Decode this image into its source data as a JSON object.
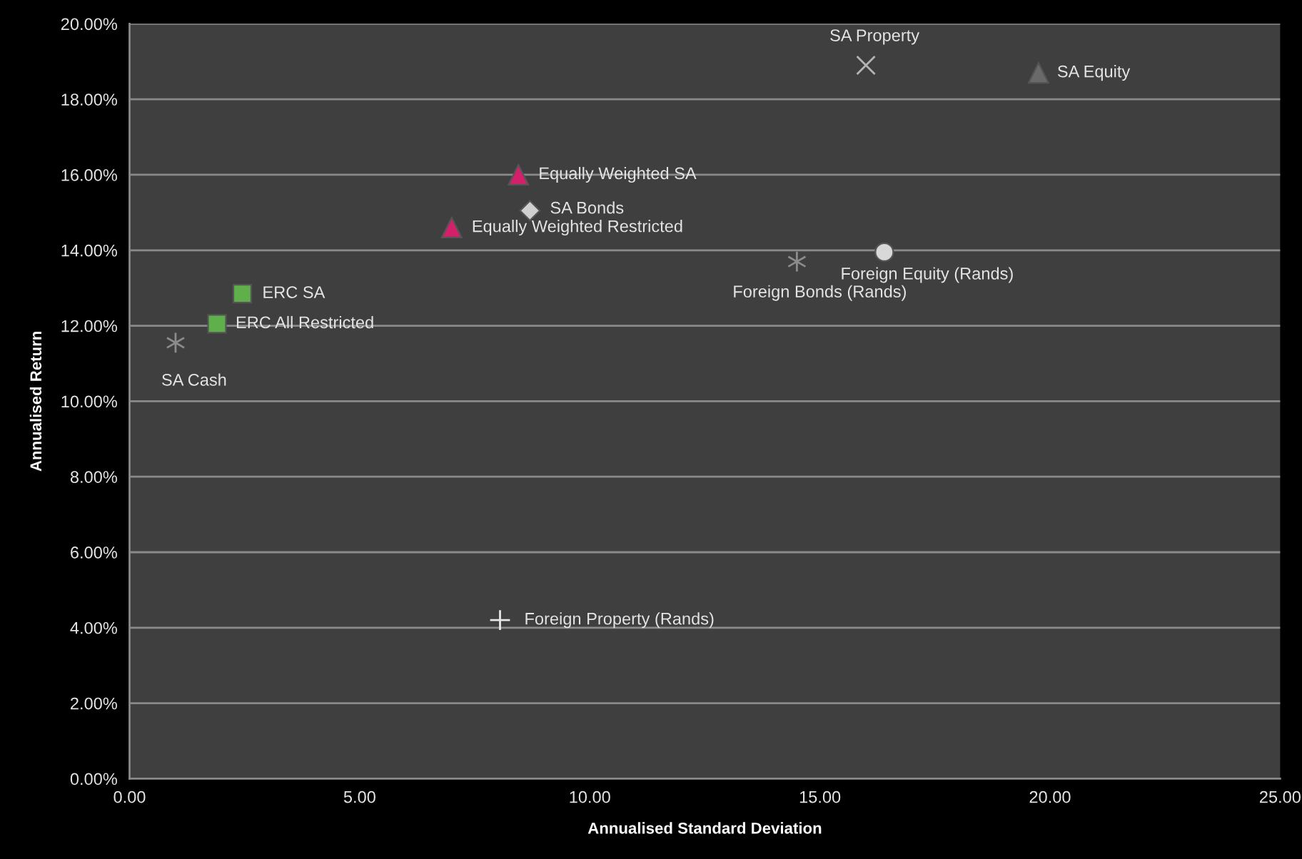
{
  "chart_data": {
    "type": "scatter",
    "xlabel": "Annualised Standard Deviation",
    "ylabel": "Annualised Return",
    "xlim": [
      0,
      25
    ],
    "ylim": [
      0,
      20
    ],
    "xticks": [
      {
        "value": 0,
        "label": "0.00"
      },
      {
        "value": 5,
        "label": "5.00"
      },
      {
        "value": 10,
        "label": "10.00"
      },
      {
        "value": 15,
        "label": "15.00"
      },
      {
        "value": 20,
        "label": "20.00"
      },
      {
        "value": 25,
        "label": "25.00"
      }
    ],
    "yticks": [
      {
        "value": 0,
        "label": "0.00%"
      },
      {
        "value": 2,
        "label": "2.00%"
      },
      {
        "value": 4,
        "label": "4.00%"
      },
      {
        "value": 6,
        "label": "6.00%"
      },
      {
        "value": 8,
        "label": "8.00%"
      },
      {
        "value": 10,
        "label": "10.00%"
      },
      {
        "value": 12,
        "label": "12.00%"
      },
      {
        "value": 14,
        "label": "14.00%"
      },
      {
        "value": 16,
        "label": "16.00%"
      },
      {
        "value": 18,
        "label": "18.00%"
      },
      {
        "value": 20,
        "label": "20.00%"
      }
    ],
    "grid": "y",
    "series": [
      {
        "name": "SA Cash",
        "color": "#8c8c8c",
        "x": [
          1.0
        ],
        "values": [
          11.55
        ]
      },
      {
        "name": "ERC All Restricted",
        "marker": "square",
        "color": "#5fb04a",
        "x": [
          1.9
        ],
        "values": [
          12.05
        ]
      },
      {
        "name": "ERC SA",
        "marker": "square",
        "color": "#5fb04a",
        "x": [
          2.45
        ],
        "values": [
          12.85
        ]
      },
      {
        "name": "Equally Weighted Restricted",
        "marker": "triangle",
        "color": "#d4206a",
        "x": [
          7.0
        ],
        "values": [
          14.6
        ]
      },
      {
        "name": "Equally Weighted SA",
        "marker": "triangle",
        "color": "#d4206a",
        "x": [
          8.45
        ],
        "values": [
          16.0
        ]
      },
      {
        "name": "SA Bonds",
        "marker": "diamond",
        "color": "#d0d0d0",
        "x": [
          8.7
        ],
        "values": [
          15.05
        ]
      },
      {
        "name": "Foreign Property (Rands)",
        "marker": "plus",
        "color": "#e8e8e8",
        "x": [
          8.05
        ],
        "values": [
          4.2
        ]
      },
      {
        "name": "Foreign Bonds (Rands)",
        "color": "#8c8c8c",
        "x": [
          14.5
        ],
        "values": [
          13.7
        ]
      },
      {
        "name": "Foreign Equity (Rands)",
        "marker": "circle",
        "color": "#d8d8d8",
        "x": [
          16.4
        ],
        "values": [
          13.95
        ]
      },
      {
        "name": "SA Property",
        "marker": "cross",
        "color": "#b4b4b4",
        "x": [
          16.0
        ],
        "values": [
          18.9
        ]
      },
      {
        "name": "SA Equity",
        "marker": "triangle",
        "color": "#6a6a6a",
        "x": [
          19.75
        ],
        "values": [
          18.7
        ]
      }
    ]
  }
}
